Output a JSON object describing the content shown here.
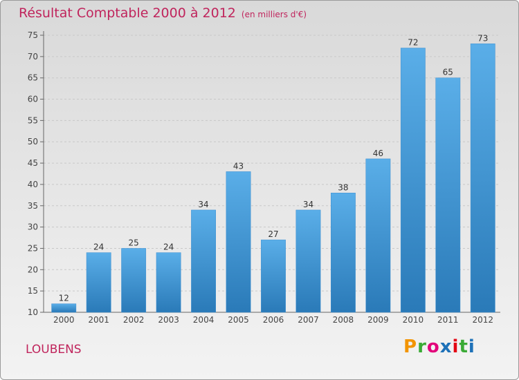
{
  "header": {
    "title": "Résultat Comptable 2000 à 2012",
    "subtitle": "(en milliers d'€)"
  },
  "footer": {
    "commune": "LOUBENS",
    "logo": "Proxiti",
    "logo_colors": [
      "#f29400",
      "#3aaa35",
      "#e2007a",
      "#1d71b8",
      "#e30613",
      "#3aaa35",
      "#1d71b8"
    ]
  },
  "colors": {
    "bar_top": "#5aaee8",
    "bar_bottom": "#2a7ab8",
    "title": "#c0245c"
  },
  "chart_data": {
    "type": "bar",
    "title": "Résultat Comptable 2000 à 2012",
    "xlabel": "",
    "ylabel": "",
    "categories": [
      "2000",
      "2001",
      "2002",
      "2003",
      "2004",
      "2005",
      "2006",
      "2007",
      "2008",
      "2009",
      "2010",
      "2011",
      "2012"
    ],
    "values": [
      12,
      24,
      25,
      24,
      34,
      43,
      27,
      34,
      38,
      46,
      72,
      65,
      73
    ],
    "ylim": [
      10,
      75
    ],
    "yticks": [
      10,
      15,
      20,
      25,
      30,
      35,
      40,
      45,
      50,
      55,
      60,
      65,
      70,
      75
    ],
    "grid": true,
    "legend": "none"
  }
}
